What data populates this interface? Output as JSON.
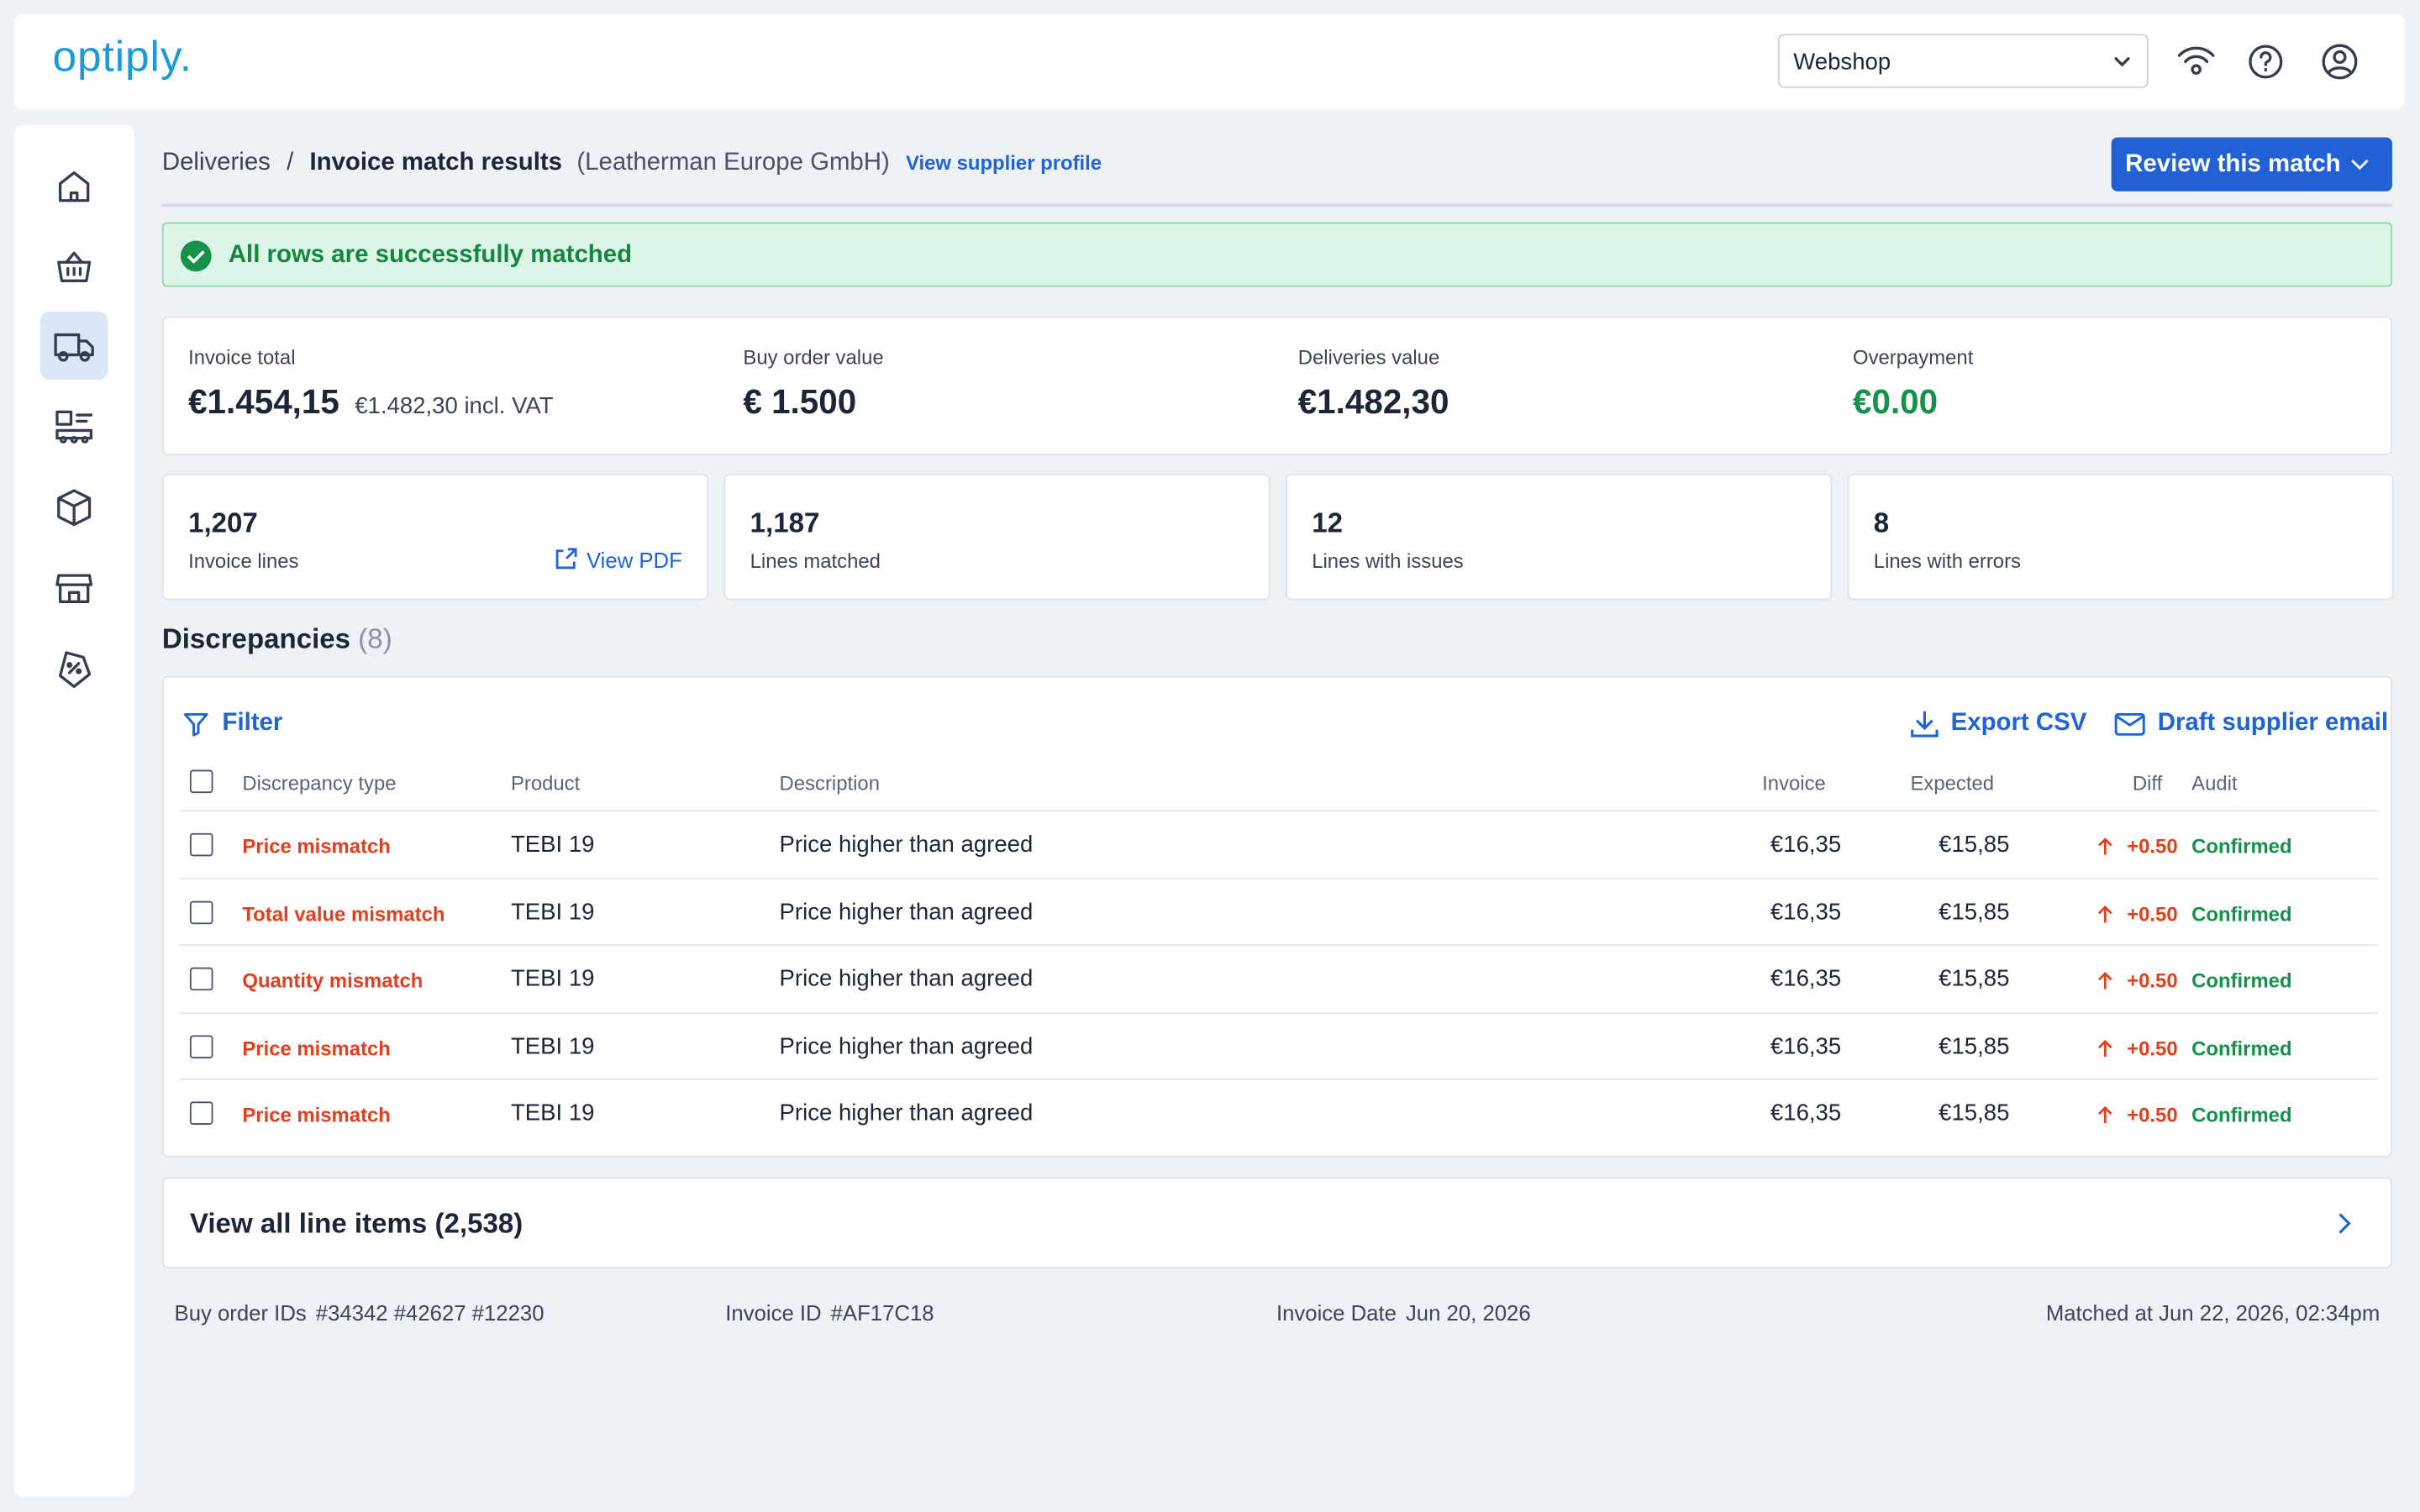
{
  "header": {
    "logo": "optiply.",
    "store_select": "Webshop"
  },
  "breadcrumb": {
    "parent": "Deliveries",
    "separator": "/",
    "current": "Invoice match results",
    "supplier": "(Leatherman Europe GmbH)",
    "link": "View supplier profile"
  },
  "review_button": "Review this match",
  "alert": "All rows are successfully matched",
  "summary": [
    {
      "label": "Invoice total",
      "value": "€1.454,15",
      "note": "€1.482,30 incl. VAT"
    },
    {
      "label": "Buy order value",
      "value": "€ 1.500"
    },
    {
      "label": "Deliveries value",
      "value": "€1.482,30"
    },
    {
      "label": "Overpayment",
      "value": "€0.00"
    }
  ],
  "stats": [
    {
      "value": "1,207",
      "label": "Invoice lines",
      "action": "View PDF"
    },
    {
      "value": "1,187",
      "label": "Lines matched"
    },
    {
      "value": "12",
      "label": "Lines with issues"
    },
    {
      "value": "8",
      "label": "Lines with errors"
    }
  ],
  "discrepancies": {
    "title": "Discrepancies",
    "count": "(8)",
    "filter": "Filter",
    "export": "Export CSV",
    "email": "Draft supplier email",
    "columns": [
      "Discrepancy type",
      "Product",
      "Description",
      "Invoice",
      "Expected",
      "Diff",
      "Audit"
    ],
    "rows": [
      [
        "Price mismatch",
        "TEBI 19",
        "Price higher than agreed",
        "€16,35",
        "€15,85",
        "+0.50",
        "Confirmed"
      ],
      [
        "Total value mismatch",
        "TEBI 19",
        "Price higher than agreed",
        "€16,35",
        "€15,85",
        "+0.50",
        "Confirmed"
      ],
      [
        "Quantity mismatch",
        "TEBI 19",
        "Price higher than agreed",
        "€16,35",
        "€15,85",
        "+0.50",
        "Confirmed"
      ],
      [
        "Price mismatch",
        "TEBI 19",
        "Price higher than agreed",
        "€16,35",
        "€15,85",
        "+0.50",
        "Confirmed"
      ],
      [
        "Price mismatch",
        "TEBI 19",
        "Price higher than agreed",
        "€16,35",
        "€15,85",
        "+0.50",
        "Confirmed"
      ]
    ]
  },
  "view_all": "View all line items (2,538)",
  "footer": [
    {
      "label": "Buy order IDs",
      "value": "#34342 #42627 #12230"
    },
    {
      "label": "Invoice ID",
      "value": "#AF17C18"
    },
    {
      "label": "Invoice Date",
      "value": "Jun 20, 2026"
    },
    {
      "label": "Matched at Jun 22, 2026, 02:34pm"
    }
  ]
}
